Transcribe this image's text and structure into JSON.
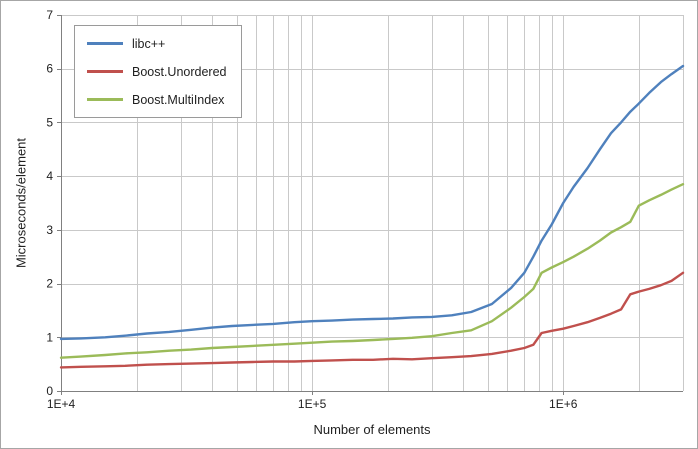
{
  "chart_data": {
    "type": "line",
    "x_scale": "log",
    "xlim": [
      10000,
      3000000
    ],
    "ylim": [
      0,
      7
    ],
    "xlabel": "Number of elements",
    "ylabel": "Microseconds/element",
    "grid": true,
    "legend_position": "top-left",
    "x_tick_labels": [
      {
        "value": 10000,
        "label": "1E+4"
      },
      {
        "value": 100000,
        "label": "1E+5"
      },
      {
        "value": 1000000,
        "label": "1E+6"
      }
    ],
    "y_ticks": [
      0,
      1,
      2,
      3,
      4,
      5,
      6,
      7
    ],
    "x": [
      10000,
      12000,
      15000,
      18000,
      22000,
      27000,
      33000,
      40000,
      48000,
      58000,
      70000,
      85000,
      100000,
      120000,
      145000,
      175000,
      210000,
      250000,
      300000,
      360000,
      430000,
      520000,
      620000,
      700000,
      760000,
      820000,
      900000,
      1000000,
      1100000,
      1250000,
      1400000,
      1550000,
      1700000,
      1850000,
      2000000,
      2200000,
      2450000,
      2700000,
      3000000
    ],
    "series": [
      {
        "name": "libc++",
        "color": "#4F81BD",
        "values": [
          0.97,
          0.98,
          1.0,
          1.03,
          1.07,
          1.1,
          1.14,
          1.18,
          1.21,
          1.23,
          1.25,
          1.28,
          1.3,
          1.31,
          1.33,
          1.34,
          1.35,
          1.37,
          1.38,
          1.41,
          1.47,
          1.62,
          1.92,
          2.2,
          2.5,
          2.8,
          3.1,
          3.5,
          3.8,
          4.15,
          4.5,
          4.8,
          5.0,
          5.2,
          5.35,
          5.55,
          5.75,
          5.9,
          6.05
        ]
      },
      {
        "name": "Boost.Unordered",
        "color": "#C0504D",
        "values": [
          0.44,
          0.45,
          0.46,
          0.47,
          0.49,
          0.5,
          0.51,
          0.52,
          0.53,
          0.54,
          0.55,
          0.55,
          0.56,
          0.57,
          0.58,
          0.58,
          0.6,
          0.59,
          0.61,
          0.63,
          0.65,
          0.69,
          0.75,
          0.8,
          0.86,
          1.08,
          1.12,
          1.16,
          1.21,
          1.28,
          1.36,
          1.44,
          1.52,
          1.8,
          1.85,
          1.9,
          1.97,
          2.05,
          2.2
        ]
      },
      {
        "name": "Boost.MultiIndex",
        "color": "#9BBB59",
        "values": [
          0.62,
          0.64,
          0.67,
          0.7,
          0.72,
          0.75,
          0.77,
          0.8,
          0.82,
          0.84,
          0.86,
          0.88,
          0.9,
          0.92,
          0.93,
          0.95,
          0.97,
          0.99,
          1.02,
          1.08,
          1.13,
          1.3,
          1.55,
          1.75,
          1.9,
          2.2,
          2.3,
          2.4,
          2.5,
          2.65,
          2.8,
          2.95,
          3.05,
          3.15,
          3.45,
          3.55,
          3.65,
          3.75,
          3.85
        ]
      }
    ],
    "colors": {
      "gridline": "#c9c9c9",
      "axis": "#808080",
      "text": "#1f1f1f",
      "figure_border": "#a6a6a6"
    }
  }
}
